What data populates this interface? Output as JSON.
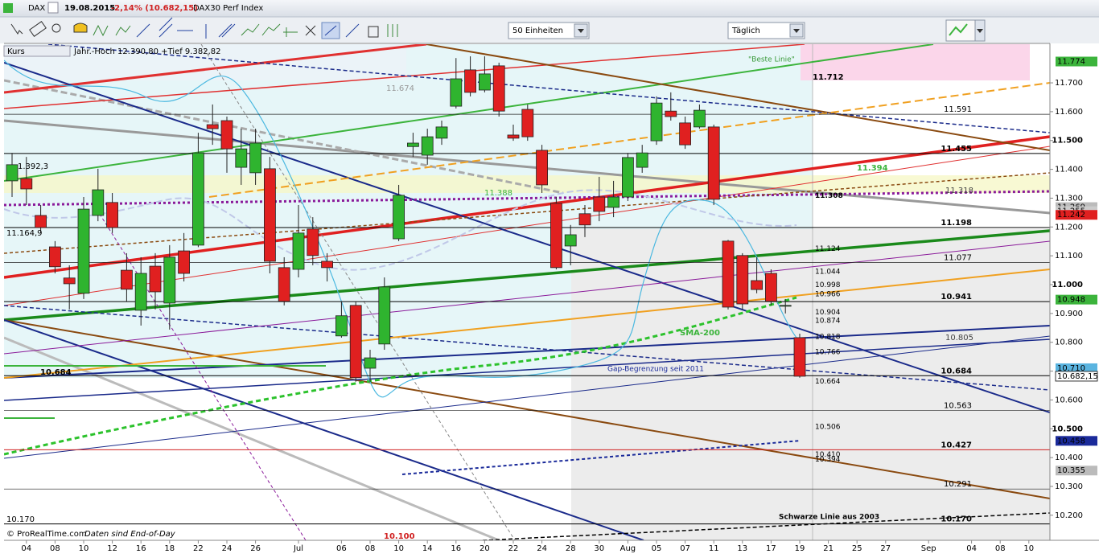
{
  "window": {
    "symbol": "DAX",
    "date": "19.08.2015",
    "change": "-2,14% (10.682,15)",
    "name": "DAX30 Perf Index"
  },
  "toolbar": {
    "units": "50 Einheiten",
    "interval": "Täglich"
  },
  "chart_data": {
    "type": "candlestick",
    "legend_label": "Kurs",
    "range_note": "Jahr.-Hoch 12.390,80 +Tief 9.382,82",
    "up_color": "#2fb42f",
    "down_color": "#e02020",
    "categories": [
      "",
      "04",
      null,
      "08",
      null,
      "10",
      null,
      "12",
      null,
      "16",
      null,
      "18",
      null,
      "22",
      null,
      "24",
      null,
      "26",
      null,
      null,
      "Jul",
      null,
      null,
      "06",
      null,
      "08",
      null,
      "10",
      null,
      "14",
      null,
      "16",
      null,
      "20",
      null,
      "22",
      null,
      "24",
      null,
      "28",
      null,
      "30",
      null,
      "Aug",
      null,
      "05",
      null,
      "07",
      null,
      "11",
      null,
      "13",
      null,
      "17",
      null,
      "19",
      null,
      "21",
      null,
      "25",
      null,
      "27",
      null,
      null,
      "Sep",
      null,
      null,
      "04",
      null,
      "08",
      null,
      "10"
    ],
    "open": [
      11360,
      11368,
      11240,
      11131,
      11023,
      10970,
      11240,
      11285,
      11050,
      10911,
      11064,
      10936,
      11117,
      11137,
      11555,
      11569,
      11407,
      11388,
      11402,
      11059,
      11053,
      11193,
      11081,
      10822,
      10928,
      10710,
      10794,
      11159,
      11479,
      11449,
      11508,
      11619,
      11745,
      11675,
      11759,
      11519,
      11608,
      11466,
      11282,
      11134,
      11246,
      11304,
      11268,
      11304,
      11407,
      11499,
      11602,
      11561,
      11547,
      11547,
      11151,
      11101,
      11014,
      11039,
      10925,
      10816,
      null,
      null,
      null,
      null,
      null,
      null,
      null,
      null,
      null,
      null,
      null,
      null,
      null,
      null,
      null,
      null
    ],
    "high": [
      11457,
      11443,
      11276,
      11151,
      11067,
      11304,
      11402,
      11318,
      11109,
      11095,
      11109,
      11137,
      11179,
      11527,
      11625,
      11583,
      11541,
      11541,
      11443,
      11095,
      11276,
      11234,
      11109,
      10942,
      10942,
      10774,
      11025,
      11346,
      11527,
      11541,
      11569,
      11786,
      11792,
      11792,
      11770,
      11555,
      11625,
      11485,
      11304,
      11207,
      11276,
      11374,
      11360,
      11457,
      11485,
      11653,
      11667,
      11583,
      11625,
      11555,
      11155,
      11109,
      11095,
      11053,
      10950,
      10830,
      null,
      null,
      null,
      null,
      null,
      null,
      null,
      null,
      null,
      null,
      null,
      null,
      null,
      null,
      null,
      null
    ],
    "low": [
      11304,
      11276,
      11179,
      11039,
      10914,
      10950,
      11220,
      11179,
      10942,
      10858,
      10914,
      10844,
      11011,
      11130,
      11485,
      11388,
      11346,
      11346,
      11039,
      10928,
      11025,
      11067,
      11011,
      10816,
      10663,
      10663,
      10774,
      11151,
      11443,
      11416,
      11485,
      11611,
      11653,
      11667,
      11583,
      11499,
      11499,
      11318,
      11053,
      11067,
      11165,
      11220,
      11234,
      11290,
      11388,
      11485,
      11569,
      11471,
      11541,
      11276,
      10914,
      10914,
      10970,
      10928,
      10900,
      10677,
      null,
      null,
      null,
      null,
      null,
      null,
      null,
      null,
      null,
      null,
      null,
      null,
      null,
      null,
      null,
      null
    ],
    "close": [
      11416,
      11332,
      11198,
      11062,
      11003,
      11262,
      11329,
      11198,
      10984,
      11039,
      10975,
      11095,
      11039,
      11457,
      11541,
      11471,
      11471,
      11491,
      11081,
      10942,
      11179,
      11101,
      11059,
      10892,
      10677,
      10746,
      10992,
      11310,
      11491,
      11513,
      11547,
      11714,
      11667,
      11731,
      11602,
      11508,
      11513,
      11346,
      11059,
      11173,
      11207,
      11254,
      11304,
      11441,
      11457,
      11630,
      11583,
      11485,
      11605,
      11296,
      10922,
      10933,
      10983,
      10942,
      10928,
      10682.15,
      null,
      null,
      null,
      null,
      null,
      null,
      null,
      null,
      null,
      null,
      null,
      null,
      null,
      null,
      null,
      null
    ],
    "ylim": [
      10113,
      11834
    ],
    "yticks": [
      {
        "value": 10200,
        "label": "10.200"
      },
      {
        "value": 10300,
        "label": "10.300"
      },
      {
        "value": 10400,
        "label": "10.400"
      },
      {
        "value": 10500,
        "label": "10.500"
      },
      {
        "value": 10600,
        "label": "10.600"
      },
      {
        "value": 10700,
        "label": "10.700"
      },
      {
        "value": 10800,
        "label": "10.800"
      },
      {
        "value": 10900,
        "label": "10.900"
      },
      {
        "value": 11000,
        "label": "11.000"
      },
      {
        "value": 11100,
        "label": "11.100"
      },
      {
        "value": 11200,
        "label": "11.200"
      },
      {
        "value": 11300,
        "label": "11.300"
      },
      {
        "value": 11400,
        "label": "11.400"
      },
      {
        "value": 11500,
        "label": "11.500"
      },
      {
        "value": 11600,
        "label": "11.600"
      },
      {
        "value": 11700,
        "label": "11.700"
      }
    ],
    "right_levels": [
      {
        "value": 11591,
        "label": "11.591",
        "color": "#222222",
        "bold": false
      },
      {
        "value": 11455,
        "label": "11.455",
        "color": "#000000",
        "bold": true
      },
      {
        "value": 11198,
        "label": "11.198",
        "color": "#000000",
        "bold": true
      },
      {
        "value": 11077,
        "label": "11.077",
        "color": "#222222",
        "bold": false
      },
      {
        "value": 10941,
        "label": "10.941",
        "color": "#000000",
        "bold": true
      },
      {
        "value": 10684,
        "label": "10.684",
        "color": "#000000",
        "bold": true
      },
      {
        "value": 10563,
        "label": "10.563",
        "color": "#222222",
        "bold": false
      },
      {
        "value": 10427,
        "label": "10.427",
        "color": "#d02020",
        "bold": true
      },
      {
        "value": 10291,
        "label": "10.291",
        "color": "#222222",
        "bold": false
      },
      {
        "value": 10170,
        "label": "10.170",
        "color": "#000000",
        "bold": true
      }
    ],
    "mid_levels": [
      {
        "value": 11308,
        "label": "11.308",
        "color": "#8a1a9a",
        "bold": true
      },
      {
        "value": 11124,
        "label": "11.124",
        "color": "#3cb43c",
        "bold": false
      },
      {
        "value": 11044,
        "label": "11.044",
        "color": "#666666",
        "bold": false
      },
      {
        "value": 10998,
        "label": "10.998",
        "color": "#1a2a9a",
        "bold": false
      },
      {
        "value": 10966,
        "label": "10.966",
        "color": "#f0a020",
        "bold": false
      },
      {
        "value": 10904,
        "label": "10.904",
        "color": "#1a2a9a",
        "bold": false
      },
      {
        "value": 10874,
        "label": "10.874",
        "color": "#3cb43c",
        "bold": false
      },
      {
        "value": 10818,
        "label": "10.818",
        "color": "#1a2a9a",
        "bold": false
      },
      {
        "value": 10766,
        "label": "10.766",
        "color": "#1a2a9a",
        "bold": false
      },
      {
        "value": 10664,
        "label": "10.664",
        "color": "#1a2a9a",
        "bold": false
      },
      {
        "value": 10506,
        "label": "10.506",
        "color": "#888888",
        "bold": false
      },
      {
        "value": 10410,
        "label": "10.410",
        "color": "#888888",
        "bold": false
      },
      {
        "value": 10394,
        "label": "10.394",
        "color": "#8a4a10",
        "bold": false
      }
    ],
    "price_tags": [
      {
        "value": 11774,
        "label": "11.774",
        "color": "#3cb43c"
      },
      {
        "value": 11269,
        "label": "11.269",
        "color": "#bbbbbb"
      },
      {
        "value": 11255,
        "label": "11.255",
        "color": "#cccccc"
      },
      {
        "value": 11242,
        "label": "11.242",
        "color": "#e02020"
      },
      {
        "value": 10948,
        "label": "10.948",
        "color": "#3cb43c"
      },
      {
        "value": 10710,
        "label": "10.710",
        "color": "#5ab4e0"
      },
      {
        "value": 10682.15,
        "label": "10.682,15",
        "color": "#ffffff"
      },
      {
        "value": 10458,
        "label": "10.458",
        "color": "#1a2a9a"
      },
      {
        "value": 10355,
        "label": "10.355",
        "color": "#bbbbbb"
      }
    ],
    "annotations": [
      "\"Beste Linie\"",
      "SMA-200",
      "Gap-Begrenzung seit 2011",
      "Schwarze Linie aus 2003",
      "11.712",
      "11.394",
      "11.318",
      "10.805",
      "11.674",
      "11.388",
      "11.164,9",
      "1.392,3",
      "10.684",
      "10.170",
      "10.100"
    ],
    "footer": "© ProRealTime.com",
    "footer_note": "Daten sind End-of-Day"
  }
}
